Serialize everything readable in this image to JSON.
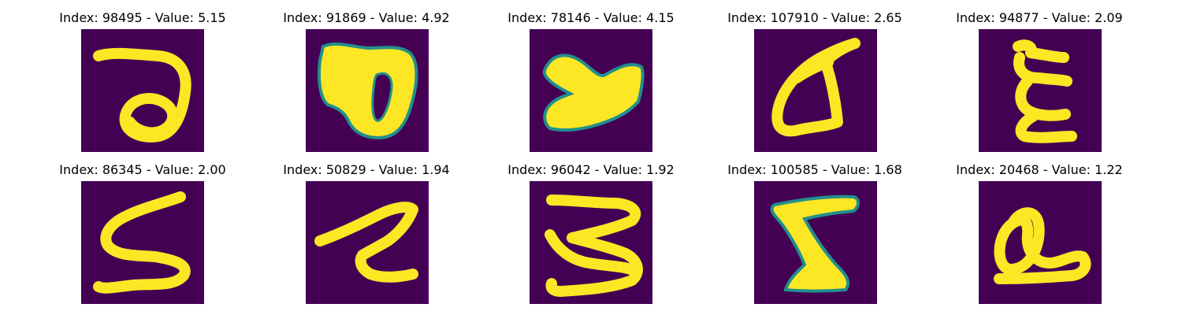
{
  "colors": {
    "background": "#440154",
    "mid": "#21908d",
    "bright": "#fde725"
  },
  "panels": [
    {
      "title": "Index: 98495 - Value: 5.15",
      "glyph_icon": "handwritten-a-glyph"
    },
    {
      "title": "Index: 91869 - Value: 4.92",
      "glyph_icon": "handwritten-b-glyph"
    },
    {
      "title": "Index: 78146 - Value: 4.15",
      "glyph_icon": "handwritten-y-glyph"
    },
    {
      "title": "Index: 107910 - Value: 2.65",
      "glyph_icon": "handwritten-a-glyph"
    },
    {
      "title": "Index: 94877 - Value: 2.09",
      "glyph_icon": "handwritten-e-glyph"
    },
    {
      "title": "Index: 86345 - Value: 2.00",
      "glyph_icon": "handwritten-s-glyph"
    },
    {
      "title": "Index: 50829 - Value: 1.94",
      "glyph_icon": "handwritten-z-glyph"
    },
    {
      "title": "Index: 96042 - Value: 1.92",
      "glyph_icon": "handwritten-3-glyph"
    },
    {
      "title": "Index: 100585 - Value: 1.68",
      "glyph_icon": "handwritten-z-glyph"
    },
    {
      "title": "Index: 20468 - Value: 1.22",
      "glyph_icon": "handwritten-a-glyph"
    }
  ]
}
